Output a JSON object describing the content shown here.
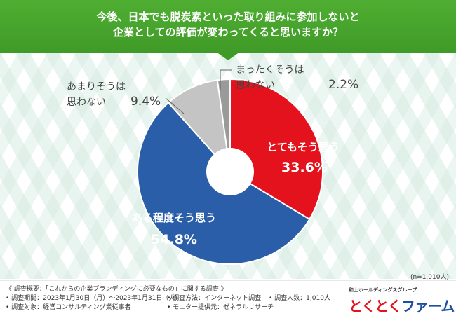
{
  "header": {
    "line1": "今後、日本でも脱炭素といった取り組みに参加しないと",
    "line2": "企業としての評価が変わってくると思いますか？"
  },
  "chart_data": {
    "type": "pie",
    "style": "donut",
    "title": "今後、日本でも脱炭素といった取り組みに参加しないと企業としての評価が変わってくると思いますか？",
    "slices": [
      {
        "label": "とてもそう思う",
        "value": 33.6,
        "value_text": "33.6%",
        "color": "#e4121c"
      },
      {
        "label": "ある程度そう思う",
        "value": 54.8,
        "value_text": "54.8%",
        "color": "#2b5ea8"
      },
      {
        "label": "あまりそうは思わない",
        "label_lines": [
          "あまりそうは",
          "思わない"
        ],
        "value": 9.4,
        "value_text": "9.4%",
        "color": "#c4c4c4"
      },
      {
        "label": "まったくそうは思わない",
        "label_lines": [
          "まったくそうは",
          "思わない"
        ],
        "value": 2.2,
        "value_text": "2.2%",
        "color": "#9a9a9a"
      }
    ],
    "sample": "(n=1,010人)"
  },
  "footer": {
    "overview": "《 調査概要：「これからの企業ブランディングに必要なもの」に関する調査 》",
    "period": "• 調査期間：2023年1月30日（月）～2023年1月31日（火）",
    "method": "• 調査方法：インターネット調査",
    "count": "• 調査人数：1,010人",
    "target": "• 調査対象：経営コンサルティング業従事者",
    "provider": "• モニター提供元：ゼネラルリサーチ"
  },
  "brand": {
    "sub": "和上ホールディングスグループ",
    "name_red": "とくとく",
    "name_blue": "ファーム"
  },
  "colors": {
    "header_green": "#4fae32",
    "red": "#e4121c",
    "blue": "#2b5ea8",
    "light_gray": "#c4c4c4",
    "dark_gray": "#9a9a9a"
  }
}
